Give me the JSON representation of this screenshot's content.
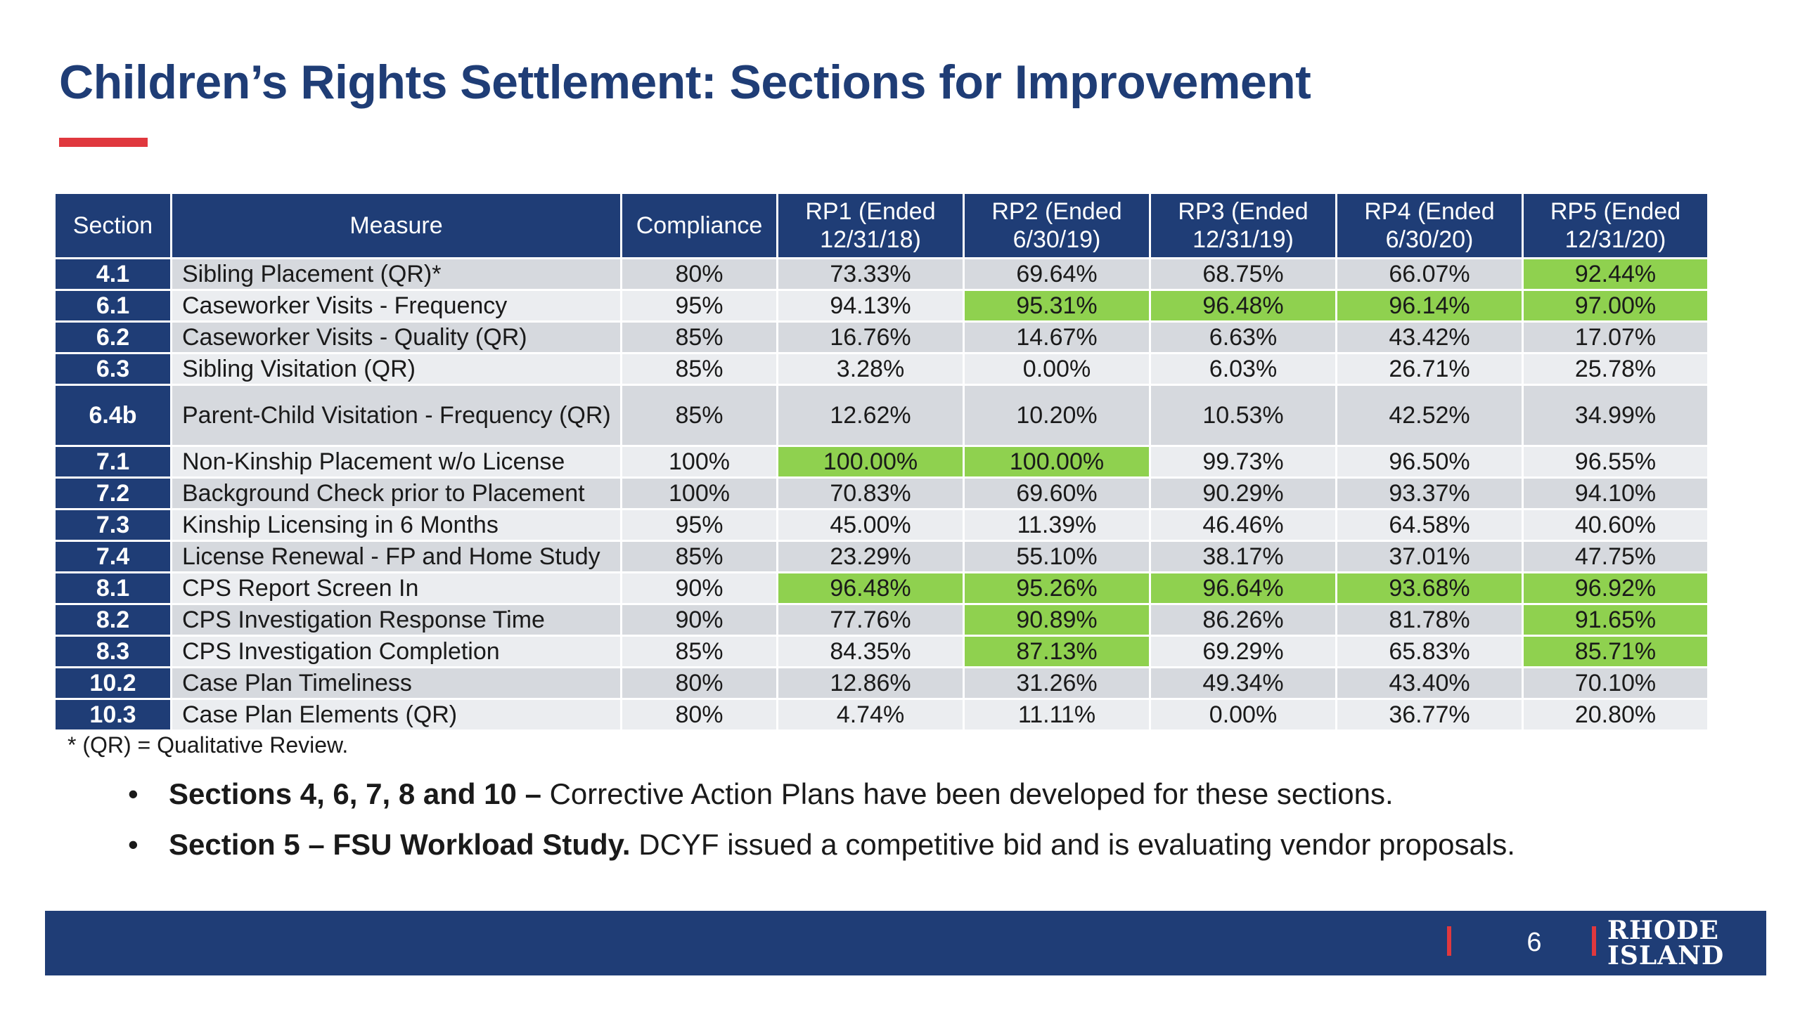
{
  "title": "Children’s Rights Settlement: Sections for Improvement",
  "table": {
    "headers": {
      "section": "Section",
      "measure": "Measure",
      "compliance": "Compliance",
      "rp": [
        {
          "line1": "RP1 (Ended",
          "line2": "12/31/18)"
        },
        {
          "line1": "RP2 (Ended",
          "line2": "6/30/19)"
        },
        {
          "line1": "RP3 (Ended",
          "line2": "12/31/19)"
        },
        {
          "line1": "RP4 (Ended",
          "line2": "6/30/20)"
        },
        {
          "line1": "RP5 (Ended",
          "line2": "12/31/20)"
        }
      ]
    },
    "highlight_color": "#8fd14f",
    "rows": [
      {
        "section": "4.1",
        "measure": "Sibling Placement (QR)*",
        "compliance": "80%",
        "values": [
          "73.33%",
          "69.64%",
          "68.75%",
          "66.07%",
          "92.44%"
        ],
        "met": [
          false,
          false,
          false,
          false,
          true
        ]
      },
      {
        "section": "6.1",
        "measure": "Caseworker Visits - Frequency",
        "compliance": "95%",
        "values": [
          "94.13%",
          "95.31%",
          "96.48%",
          "96.14%",
          "97.00%"
        ],
        "met": [
          false,
          true,
          true,
          true,
          true
        ]
      },
      {
        "section": "6.2",
        "measure": "Caseworker Visits - Quality (QR)",
        "compliance": "85%",
        "values": [
          "16.76%",
          "14.67%",
          "6.63%",
          "43.42%",
          "17.07%"
        ],
        "met": [
          false,
          false,
          false,
          false,
          false
        ]
      },
      {
        "section": "6.3",
        "measure": "Sibling Visitation (QR)",
        "compliance": "85%",
        "values": [
          "3.28%",
          "0.00%",
          "6.03%",
          "26.71%",
          "25.78%"
        ],
        "met": [
          false,
          false,
          false,
          false,
          false
        ]
      },
      {
        "section": "6.4b",
        "measure": "Parent-Child Visitation - Frequency (QR)",
        "compliance": "85%",
        "values": [
          "12.62%",
          "10.20%",
          "10.53%",
          "42.52%",
          "34.99%"
        ],
        "met": [
          false,
          false,
          false,
          false,
          false
        ]
      },
      {
        "section": "7.1",
        "measure": "Non-Kinship Placement w/o License",
        "compliance": "100%",
        "values": [
          "100.00%",
          "100.00%",
          "99.73%",
          "96.50%",
          "96.55%"
        ],
        "met": [
          true,
          true,
          false,
          false,
          false
        ]
      },
      {
        "section": "7.2",
        "measure": "Background Check prior to Placement",
        "compliance": "100%",
        "values": [
          "70.83%",
          "69.60%",
          "90.29%",
          "93.37%",
          "94.10%"
        ],
        "met": [
          false,
          false,
          false,
          false,
          false
        ]
      },
      {
        "section": "7.3",
        "measure": "Kinship Licensing in 6 Months",
        "compliance": "95%",
        "values": [
          "45.00%",
          "11.39%",
          "46.46%",
          "64.58%",
          "40.60%"
        ],
        "met": [
          false,
          false,
          false,
          false,
          false
        ]
      },
      {
        "section": "7.4",
        "measure": "License Renewal - FP and Home Study",
        "compliance": "85%",
        "values": [
          "23.29%",
          "55.10%",
          "38.17%",
          "37.01%",
          "47.75%"
        ],
        "met": [
          false,
          false,
          false,
          false,
          false
        ]
      },
      {
        "section": "8.1",
        "measure": "CPS Report Screen In",
        "compliance": "90%",
        "values": [
          "96.48%",
          "95.26%",
          "96.64%",
          "93.68%",
          "96.92%"
        ],
        "met": [
          true,
          true,
          true,
          true,
          true
        ]
      },
      {
        "section": "8.2",
        "measure": "CPS Investigation Response Time",
        "compliance": "90%",
        "values": [
          "77.76%",
          "90.89%",
          "86.26%",
          "81.78%",
          "91.65%"
        ],
        "met": [
          false,
          true,
          false,
          false,
          true
        ]
      },
      {
        "section": "8.3",
        "measure": "CPS Investigation Completion",
        "compliance": "85%",
        "values": [
          "84.35%",
          "87.13%",
          "69.29%",
          "65.83%",
          "85.71%"
        ],
        "met": [
          false,
          true,
          false,
          false,
          true
        ]
      },
      {
        "section": "10.2",
        "measure": "Case Plan Timeliness",
        "compliance": "80%",
        "values": [
          "12.86%",
          "31.26%",
          "49.34%",
          "43.40%",
          "70.10%"
        ],
        "met": [
          false,
          false,
          false,
          false,
          false
        ]
      },
      {
        "section": "10.3",
        "measure": "Case Plan Elements (QR)",
        "compliance": "80%",
        "values": [
          "4.74%",
          "11.11%",
          "0.00%",
          "36.77%",
          "20.80%"
        ],
        "met": [
          false,
          false,
          false,
          false,
          false
        ]
      }
    ]
  },
  "footnote": "* (QR) = Qualitative Review.",
  "bullets": [
    {
      "lead": "Sections 4, 6, 7, 8 and 10 –",
      "text": " Corrective Action Plans have been developed for these sections."
    },
    {
      "lead": "Section 5 – FSU Workload Study.",
      "text": " DCYF issued a competitive bid and is evaluating vendor proposals."
    }
  ],
  "footer": {
    "page_number": "6",
    "logo_line1": "RHODE",
    "logo_line2": "ISLAND"
  }
}
